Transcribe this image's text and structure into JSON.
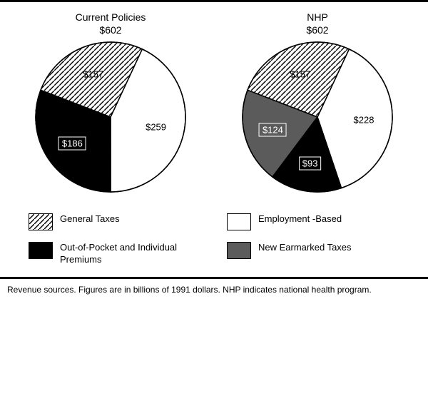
{
  "colors": {
    "background": "#ffffff",
    "border": "#000000",
    "text": "#000000",
    "white_text": "#ffffff"
  },
  "hatch": {
    "stroke": "#000000",
    "bg": "#ffffff",
    "width": 1.4,
    "spacing": 7
  },
  "fills": {
    "general_taxes": "hatch",
    "employment_based": "#ffffff",
    "out_of_pocket": "#000000",
    "new_earmarked": "#5b5b5b"
  },
  "pie": {
    "radius": 105,
    "outline_width": 1.5
  },
  "charts": [
    {
      "title_line1": "Current Policies",
      "title_line2": "$602",
      "slices": [
        {
          "key": "employment_based",
          "value": 259,
          "label": "$259",
          "label_style": "plain"
        },
        {
          "key": "out_of_pocket",
          "value": 186,
          "label": "$186",
          "label_style": "boxed_white"
        },
        {
          "key": "general_taxes",
          "value": 157,
          "label": "$157",
          "label_style": "plain"
        }
      ],
      "total": 602,
      "start_angle_deg": -65
    },
    {
      "title_line1": "NHP",
      "title_line2": "$602",
      "slices": [
        {
          "key": "employment_based",
          "value": 228,
          "label": "$228",
          "label_style": "plain"
        },
        {
          "key": "out_of_pocket",
          "value": 93,
          "label": "$93",
          "label_style": "boxed_white"
        },
        {
          "key": "new_earmarked",
          "value": 124,
          "label": "$124",
          "label_style": "boxed_white"
        },
        {
          "key": "general_taxes",
          "value": 157,
          "label": "$157",
          "label_style": "plain"
        }
      ],
      "total": 602,
      "start_angle_deg": -65
    }
  ],
  "legend": [
    {
      "key": "general_taxes",
      "label": "General Taxes"
    },
    {
      "key": "employment_based",
      "label": "Employment -Based"
    },
    {
      "key": "out_of_pocket",
      "label": "Out-of-Pocket and Individual Premiums"
    },
    {
      "key": "new_earmarked",
      "label": "New Earmarked Taxes"
    }
  ],
  "caption": "Revenue sources. Figures are in billions of 1991 dollars. NHP indicates national health program."
}
